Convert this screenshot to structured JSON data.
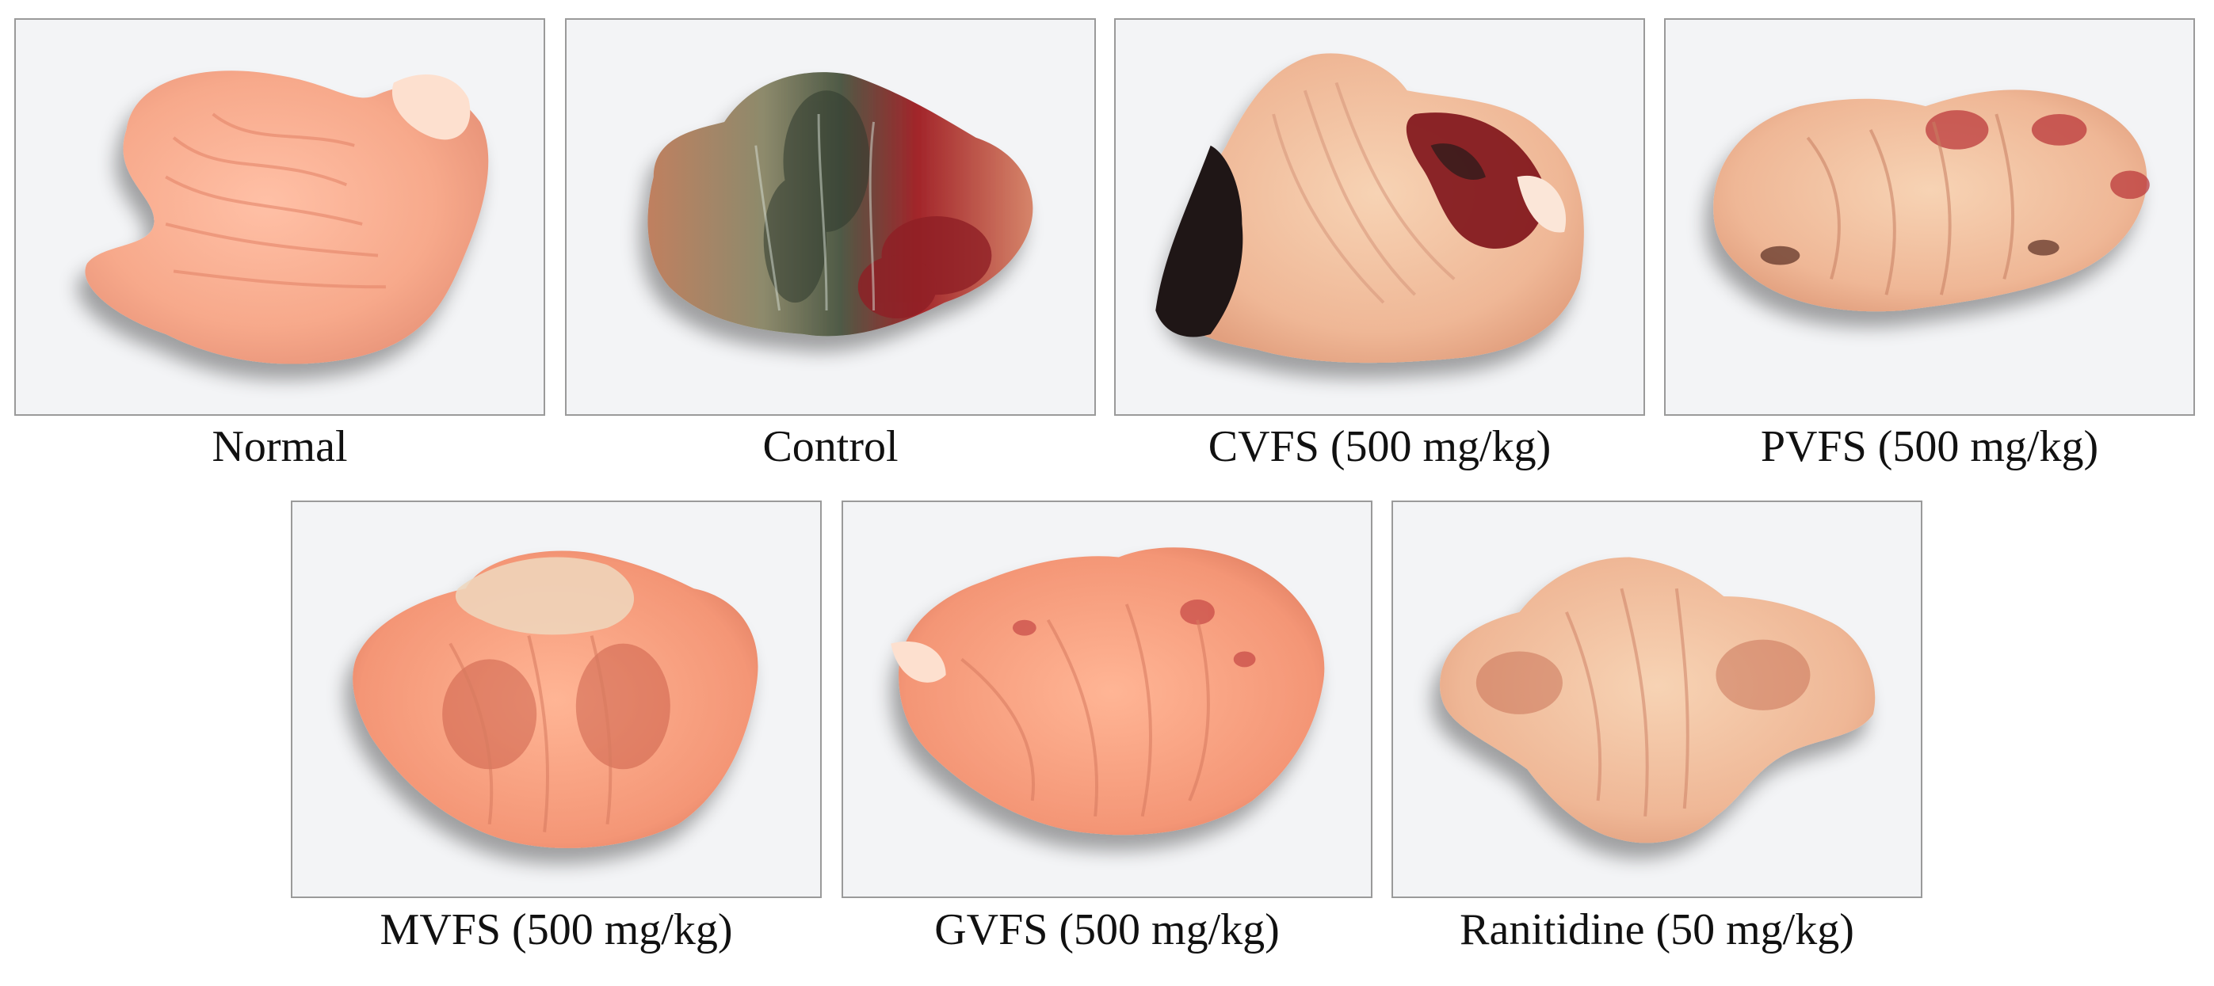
{
  "figure": {
    "panels": [
      {
        "label": "Normal"
      },
      {
        "label": "Control"
      },
      {
        "label": "CVFS (500 mg/kg)"
      },
      {
        "label": "PVFS (500 mg/kg)"
      },
      {
        "label": "MVFS (500 mg/kg)"
      },
      {
        "label": "GVFS (500 mg/kg)"
      },
      {
        "label": "Ranitidine (50 mg/kg)"
      }
    ]
  }
}
